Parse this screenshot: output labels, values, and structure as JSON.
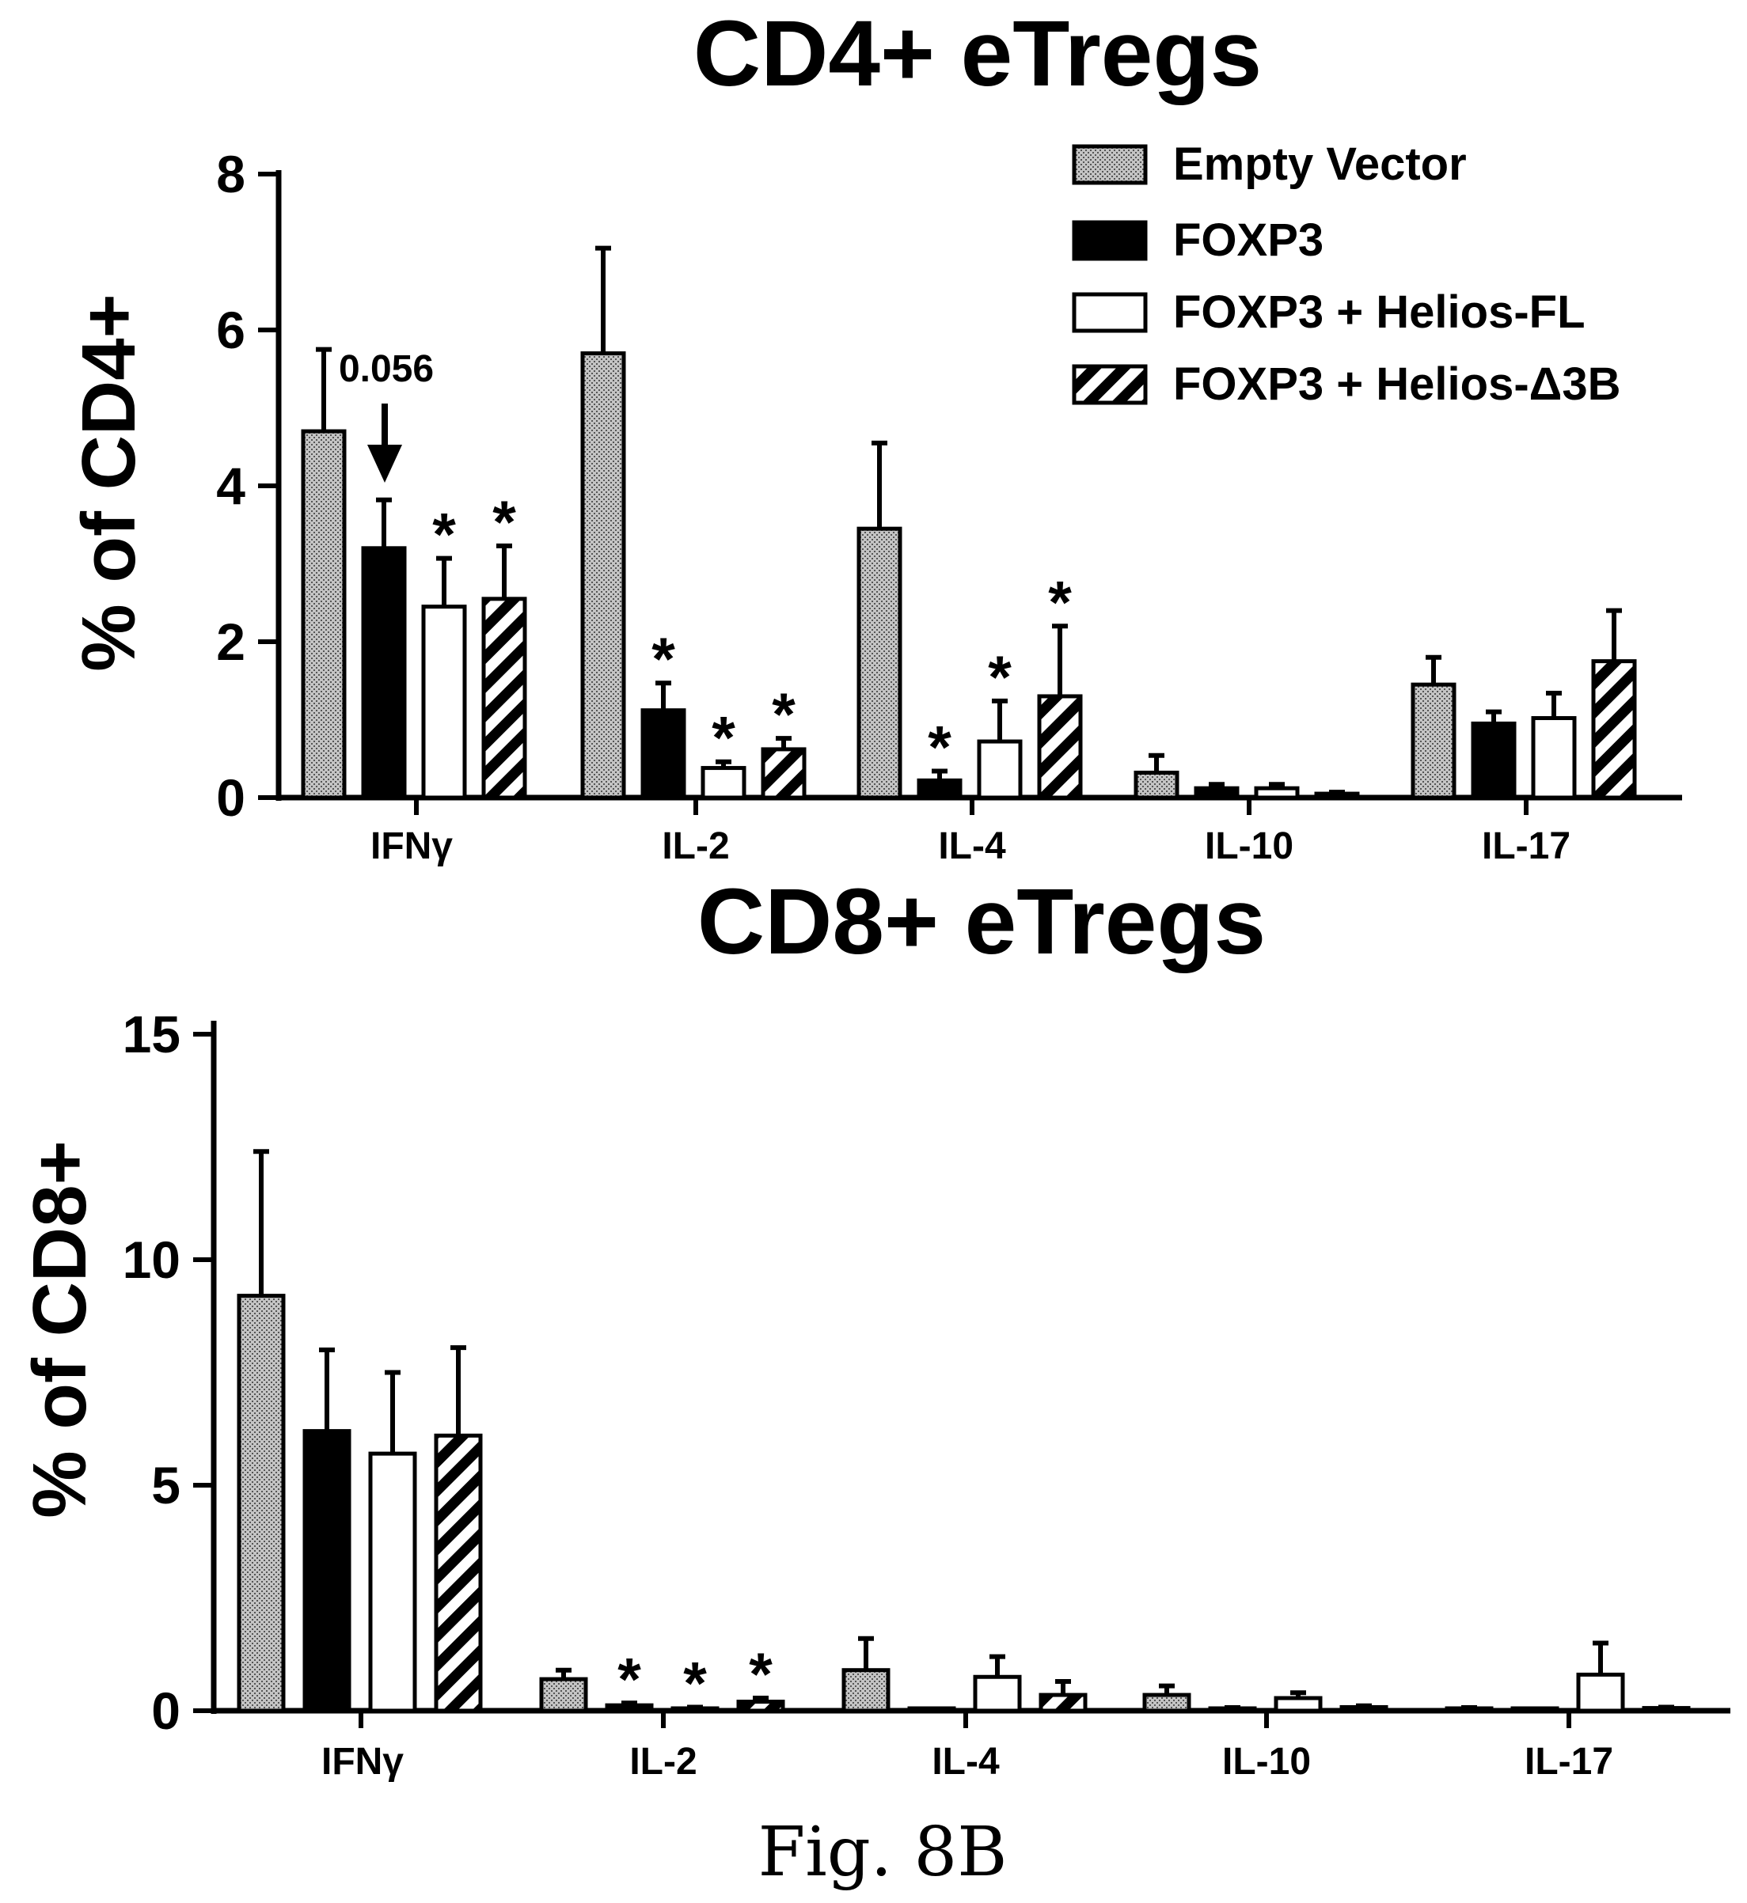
{
  "figure_caption": "Fig. 8B",
  "legend": [
    {
      "label": "Empty Vector",
      "fill": "dotted"
    },
    {
      "label": "FOXP3",
      "fill": "black"
    },
    {
      "label": "FOXP3 + Helios-FL",
      "fill": "white"
    },
    {
      "label": "FOXP3 + Helios-Δ3B",
      "fill": "hatched"
    }
  ],
  "colors": {
    "ink": "#000000",
    "dotted_gray": "#b5b5b5",
    "background": "#ffffff"
  },
  "chart_data": [
    {
      "type": "bar",
      "title": "CD4+ eTregs",
      "ylabel": "% of CD4+",
      "xlabel": "",
      "categories": [
        "IFNγ",
        "IL-2",
        "IL-4",
        "IL-10",
        "IL-17"
      ],
      "ylim": [
        0,
        8
      ],
      "yticks": [
        "0",
        "2",
        "4",
        "6",
        "8"
      ],
      "grid": false,
      "legend_position": "top-right",
      "series": [
        {
          "name": "Empty Vector",
          "values": [
            4.7,
            5.7,
            3.45,
            0.32,
            1.45
          ],
          "errors": [
            1.05,
            1.35,
            1.1,
            0.22,
            0.35
          ]
        },
        {
          "name": "FOXP3",
          "values": [
            3.2,
            1.12,
            0.22,
            0.12,
            0.95
          ],
          "errors": [
            0.62,
            0.35,
            0.12,
            0.05,
            0.15
          ]
        },
        {
          "name": "FOXP3 + Helios-FL",
          "values": [
            2.45,
            0.38,
            0.72,
            0.12,
            1.02
          ],
          "errors": [
            0.62,
            0.08,
            0.52,
            0.05,
            0.32
          ]
        },
        {
          "name": "FOXP3 + Helios-Δ3B",
          "values": [
            2.55,
            0.62,
            1.3,
            0.05,
            1.75
          ],
          "errors": [
            0.68,
            0.14,
            0.9,
            0.02,
            0.65
          ]
        }
      ],
      "significance": [
        {
          "category": "IFNγ",
          "series": "FOXP3 + Helios-FL",
          "mark": "*"
        },
        {
          "category": "IFNγ",
          "series": "FOXP3 + Helios-Δ3B",
          "mark": "*"
        },
        {
          "category": "IL-2",
          "series": "FOXP3",
          "mark": "*"
        },
        {
          "category": "IL-2",
          "series": "FOXP3 + Helios-FL",
          "mark": "*"
        },
        {
          "category": "IL-2",
          "series": "FOXP3 + Helios-Δ3B",
          "mark": "*"
        },
        {
          "category": "IL-4",
          "series": "FOXP3",
          "mark": "*"
        },
        {
          "category": "IL-4",
          "series": "FOXP3 + Helios-FL",
          "mark": "*"
        },
        {
          "category": "IL-4",
          "series": "FOXP3 + Helios-Δ3B",
          "mark": "*"
        }
      ],
      "annotations": [
        {
          "text": "0.056",
          "category": "IFNγ",
          "series": "FOXP3",
          "arrow": true
        }
      ]
    },
    {
      "type": "bar",
      "title": "CD8+ eTregs",
      "ylabel": "% of CD8+",
      "xlabel": "",
      "categories": [
        "IFNγ",
        "IL-2",
        "IL-4",
        "IL-10",
        "IL-17"
      ],
      "ylim": [
        0,
        15
      ],
      "yticks": [
        "0",
        "5",
        "10",
        "15"
      ],
      "grid": false,
      "series": [
        {
          "name": "Empty Vector",
          "values": [
            9.2,
            0.7,
            0.9,
            0.35,
            0.05
          ],
          "errors": [
            3.2,
            0.2,
            0.7,
            0.2,
            0.02
          ]
        },
        {
          "name": "FOXP3",
          "values": [
            6.2,
            0.12,
            0.02,
            0.05,
            0.02
          ],
          "errors": [
            1.8,
            0.05,
            0.01,
            0.02,
            0.01
          ]
        },
        {
          "name": "FOXP3 + Helios-FL",
          "values": [
            5.7,
            0.05,
            0.75,
            0.28,
            0.8
          ],
          "errors": [
            1.8,
            0.03,
            0.45,
            0.12,
            0.7
          ]
        },
        {
          "name": "FOXP3 + Helios-Δ3B",
          "values": [
            6.1,
            0.2,
            0.35,
            0.08,
            0.06
          ],
          "errors": [
            1.95,
            0.08,
            0.3,
            0.03,
            0.02
          ]
        }
      ],
      "significance": [
        {
          "category": "IL-2",
          "series": "FOXP3",
          "mark": "*"
        },
        {
          "category": "IL-2",
          "series": "FOXP3 + Helios-FL",
          "mark": "*"
        },
        {
          "category": "IL-2",
          "series": "FOXP3 + Helios-Δ3B",
          "mark": "*"
        }
      ],
      "annotations": []
    }
  ]
}
